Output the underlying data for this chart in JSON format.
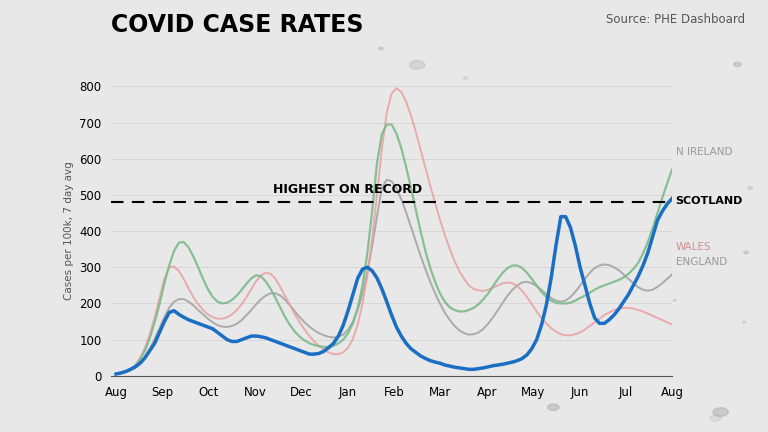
{
  "title": "COVID CASE RATES",
  "source": "Source: PHE Dashboard",
  "ylabel": "Cases per 100k, 7 day avg",
  "xlabels": [
    "Aug",
    "Sep",
    "Oct",
    "Nov",
    "Dec",
    "Jan",
    "Feb",
    "Mar",
    "Apr",
    "May",
    "Jun",
    "Jul",
    "Aug"
  ],
  "ylim": [
    0,
    800
  ],
  "yticks": [
    0,
    100,
    200,
    300,
    400,
    500,
    600,
    700,
    800
  ],
  "highest_on_record": 480,
  "annotation_text": "HIGHEST ON RECORD",
  "bg_color": "#e8e8e8",
  "left_bar_color": "#8B1A1A",
  "scotland_color": "#1a6fc4",
  "n_ireland_color": "#7dba8a",
  "wales_color": "#e8a0a0",
  "england_color": "#a0a0a0",
  "scotland_data": [
    5,
    8,
    12,
    18,
    25,
    35,
    50,
    70,
    90,
    120,
    150,
    175,
    180,
    170,
    162,
    155,
    150,
    145,
    140,
    135,
    130,
    120,
    110,
    100,
    95,
    95,
    100,
    105,
    110,
    110,
    108,
    105,
    100,
    95,
    90,
    85,
    80,
    75,
    70,
    65,
    60,
    60,
    62,
    68,
    78,
    90,
    110,
    140,
    180,
    225,
    270,
    295,
    300,
    290,
    270,
    240,
    205,
    168,
    135,
    110,
    90,
    75,
    65,
    55,
    48,
    42,
    38,
    35,
    30,
    27,
    24,
    22,
    20,
    18,
    18,
    20,
    22,
    25,
    28,
    30,
    32,
    35,
    38,
    42,
    48,
    58,
    75,
    100,
    140,
    195,
    270,
    360,
    440,
    440,
    410,
    360,
    300,
    250,
    200,
    160,
    145,
    145,
    155,
    168,
    185,
    205,
    225,
    250,
    275,
    305,
    340,
    385,
    430,
    455,
    475,
    490
  ],
  "n_ireland_data": [
    5,
    8,
    12,
    18,
    28,
    45,
    70,
    105,
    148,
    198,
    255,
    305,
    345,
    368,
    370,
    355,
    330,
    300,
    268,
    240,
    218,
    205,
    200,
    202,
    210,
    222,
    238,
    255,
    270,
    278,
    275,
    260,
    240,
    215,
    188,
    162,
    140,
    122,
    108,
    98,
    90,
    85,
    82,
    80,
    80,
    83,
    90,
    100,
    118,
    145,
    188,
    250,
    340,
    458,
    590,
    668,
    695,
    695,
    670,
    630,
    578,
    520,
    460,
    400,
    345,
    298,
    260,
    228,
    205,
    190,
    182,
    178,
    178,
    182,
    188,
    198,
    212,
    228,
    248,
    268,
    285,
    298,
    305,
    305,
    298,
    285,
    268,
    250,
    232,
    218,
    208,
    202,
    200,
    200,
    202,
    208,
    215,
    222,
    230,
    238,
    245,
    250,
    255,
    260,
    265,
    272,
    282,
    295,
    312,
    338,
    370,
    408,
    450,
    492,
    532,
    570
  ],
  "wales_data": [
    5,
    8,
    12,
    18,
    30,
    50,
    78,
    115,
    162,
    215,
    268,
    300,
    302,
    290,
    268,
    242,
    218,
    198,
    182,
    170,
    162,
    158,
    158,
    162,
    170,
    182,
    198,
    218,
    240,
    262,
    278,
    285,
    282,
    268,
    245,
    220,
    195,
    170,
    148,
    128,
    110,
    95,
    82,
    72,
    65,
    60,
    60,
    65,
    78,
    102,
    142,
    200,
    278,
    380,
    505,
    628,
    728,
    780,
    795,
    785,
    758,
    720,
    675,
    625,
    575,
    525,
    478,
    432,
    390,
    352,
    318,
    290,
    268,
    250,
    240,
    236,
    235,
    238,
    244,
    250,
    256,
    258,
    256,
    248,
    235,
    218,
    198,
    178,
    160,
    145,
    132,
    122,
    115,
    112,
    112,
    115,
    120,
    128,
    138,
    148,
    158,
    168,
    175,
    182,
    186,
    188,
    188,
    186,
    182,
    178,
    172,
    166,
    160,
    154,
    148,
    142
  ],
  "england_data": [
    5,
    7,
    10,
    15,
    22,
    35,
    52,
    75,
    102,
    132,
    162,
    188,
    205,
    212,
    212,
    205,
    195,
    182,
    170,
    158,
    148,
    140,
    136,
    135,
    138,
    144,
    154,
    168,
    182,
    198,
    212,
    222,
    228,
    228,
    222,
    210,
    195,
    178,
    162,
    148,
    136,
    126,
    118,
    112,
    108,
    106,
    108,
    114,
    128,
    150,
    182,
    228,
    288,
    360,
    442,
    520,
    542,
    538,
    518,
    488,
    452,
    412,
    372,
    332,
    295,
    260,
    228,
    200,
    175,
    155,
    138,
    126,
    118,
    114,
    115,
    120,
    130,
    145,
    162,
    182,
    202,
    222,
    238,
    250,
    258,
    260,
    256,
    248,
    238,
    226,
    215,
    208,
    205,
    208,
    218,
    232,
    250,
    268,
    285,
    298,
    305,
    308,
    306,
    300,
    292,
    280,
    268,
    256,
    245,
    238,
    235,
    238,
    246,
    256,
    268,
    280
  ]
}
